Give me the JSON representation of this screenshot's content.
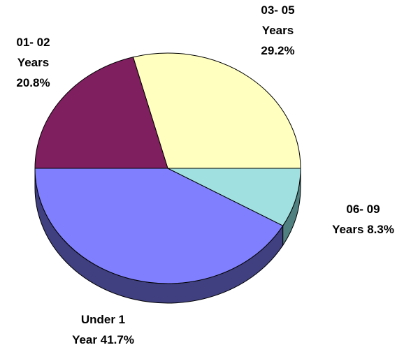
{
  "chart_data": {
    "type": "pie",
    "categories": [
      "03- 05 Years",
      "01- 02 Years",
      "Under 1 Year",
      "06- 09 Years"
    ],
    "values": [
      29.2,
      20.8,
      41.7,
      8.3
    ],
    "value_labels": [
      "29.2%",
      "20.8%",
      "41.7%",
      "8.3%"
    ],
    "colors": [
      "#ffffc0",
      "#801f60",
      "#8080ff",
      "#a0e0e0"
    ],
    "side_colors": [
      "#808060",
      "#401030",
      "#404080",
      "#508080"
    ],
    "three_d": true
  }
}
